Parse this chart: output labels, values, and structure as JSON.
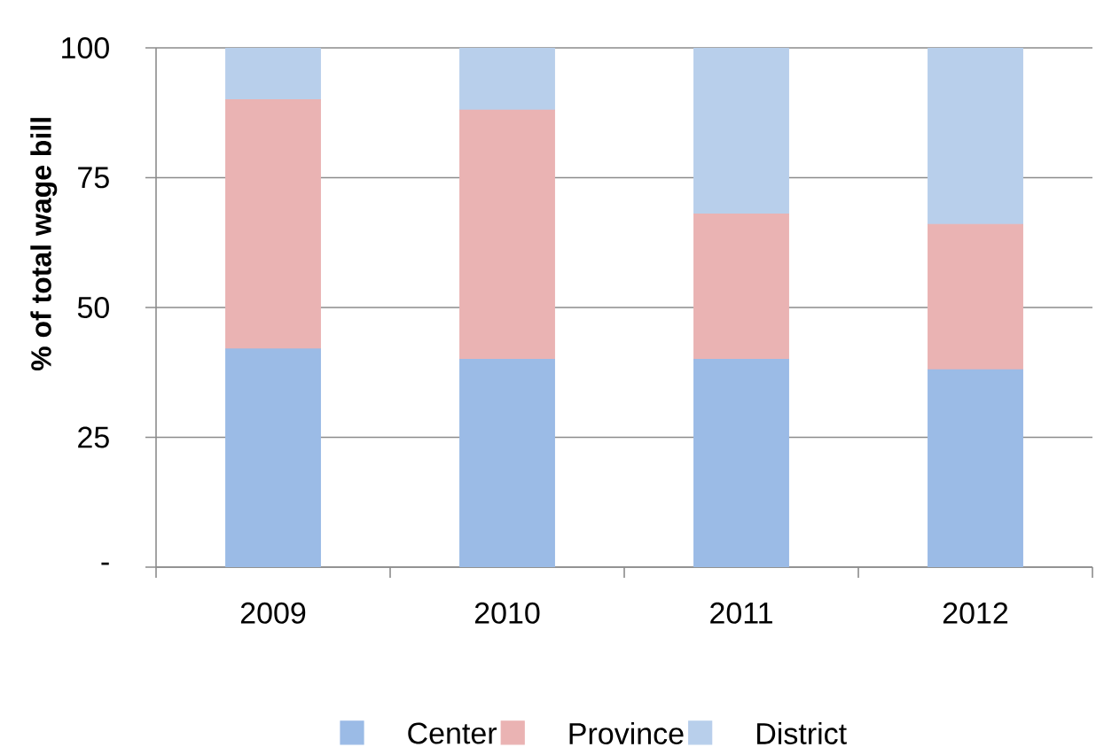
{
  "chart_data": {
    "type": "bar",
    "stacked": true,
    "ylabel": "% of total wage bill",
    "categories": [
      "2009",
      "2010",
      "2011",
      "2012"
    ],
    "series": [
      {
        "name": "Center",
        "color": "#9bbbe6",
        "values": [
          42,
          40,
          40,
          38
        ]
      },
      {
        "name": "Province",
        "color": "#eab3b3",
        "values": [
          48,
          48,
          28,
          28
        ]
      },
      {
        "name": "District",
        "color": "#b8cfeb",
        "values": [
          10,
          12,
          32,
          34
        ]
      }
    ],
    "ylim": [
      0,
      100
    ],
    "yticks": [
      {
        "value": 0,
        "label": "-"
      },
      25,
      50,
      75,
      100
    ],
    "grid": "y",
    "legend": "bottom"
  }
}
